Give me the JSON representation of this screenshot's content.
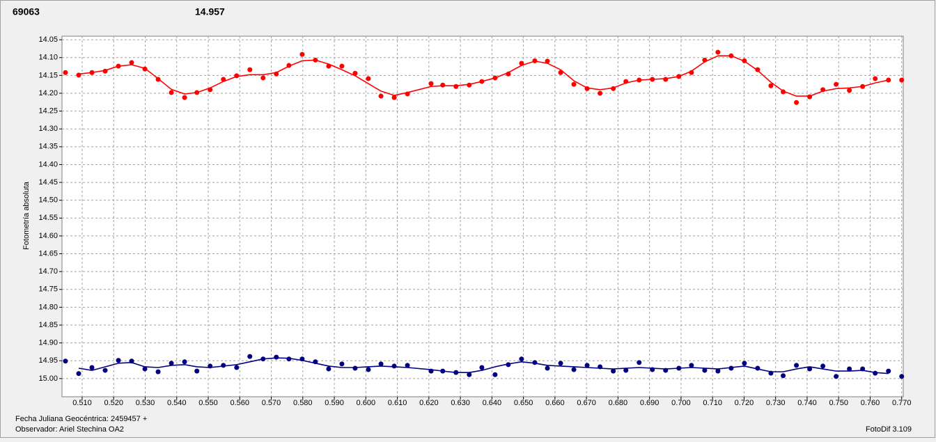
{
  "chart_data": {
    "type": "scatter",
    "header_values": [
      {
        "text": "69063",
        "color": "#ff0000"
      },
      {
        "text": "14.957",
        "color": "#000080"
      }
    ],
    "y_label": "Fotometría absoluta",
    "footer": [
      "Fecha Juliana Geocéntrica: 2459457 +",
      "Observador: Ariel Stechina OA2"
    ],
    "version": "FotoDif 3.109",
    "grid": true,
    "y_inverted": true,
    "xlim": [
      0.5036,
      0.7705
    ],
    "ylim": [
      14.04,
      15.051
    ],
    "xticks": [
      {
        "value": 0.51,
        "label": "0.510"
      },
      {
        "value": 0.52,
        "label": "0.520"
      },
      {
        "value": 0.53,
        "label": "0.530"
      },
      {
        "value": 0.54,
        "label": "0.540"
      },
      {
        "value": 0.55,
        "label": "0.550"
      },
      {
        "value": 0.56,
        "label": "0.560"
      },
      {
        "value": 0.57,
        "label": "0.570"
      },
      {
        "value": 0.58,
        "label": "0.580"
      },
      {
        "value": 0.59,
        "label": "0.590"
      },
      {
        "value": 0.6,
        "label": "0.600"
      },
      {
        "value": 0.61,
        "label": "0.610"
      },
      {
        "value": 0.62,
        "label": "0.620"
      },
      {
        "value": 0.63,
        "label": "0.630"
      },
      {
        "value": 0.64,
        "label": "0.640"
      },
      {
        "value": 0.65,
        "label": "0.650"
      },
      {
        "value": 0.66,
        "label": "0.660"
      },
      {
        "value": 0.67,
        "label": "0.670"
      },
      {
        "value": 0.68,
        "label": "0.680"
      },
      {
        "value": 0.69,
        "label": "0.690"
      },
      {
        "value": 0.7,
        "label": "0.700"
      },
      {
        "value": 0.71,
        "label": "0.710"
      },
      {
        "value": 0.72,
        "label": "0.720"
      },
      {
        "value": 0.73,
        "label": "0.730"
      },
      {
        "value": 0.74,
        "label": "0.740"
      },
      {
        "value": 0.75,
        "label": "0.750"
      },
      {
        "value": 0.76,
        "label": "0.760"
      },
      {
        "value": 0.77,
        "label": "0.770"
      }
    ],
    "yticks": [
      14.05,
      {
        "value": 14.1,
        "label": "14.10"
      },
      14.15,
      {
        "value": 14.2,
        "label": "14.20"
      },
      14.25,
      {
        "value": 14.3,
        "label": "14.30"
      },
      14.35,
      {
        "value": 14.4,
        "label": "14.40"
      },
      14.45,
      {
        "value": 14.5,
        "label": "14.50"
      },
      14.55,
      {
        "value": 14.6,
        "label": "14.60"
      },
      14.65,
      {
        "value": 14.7,
        "label": "14.70"
      },
      14.75,
      {
        "value": 14.8,
        "label": "14.80"
      },
      14.85,
      {
        "value": 14.9,
        "label": "14.90"
      },
      14.95,
      {
        "value": 15.0,
        "label": "15.00"
      }
    ],
    "x": [
      0.5047,
      0.5089,
      0.5131,
      0.5173,
      0.5215,
      0.5257,
      0.5299,
      0.5341,
      0.5383,
      0.5425,
      0.5464,
      0.5506,
      0.5548,
      0.559,
      0.5632,
      0.5674,
      0.5716,
      0.5756,
      0.5798,
      0.584,
      0.5882,
      0.5924,
      0.5966,
      0.6008,
      0.6048,
      0.609,
      0.6132,
      0.6207,
      0.6244,
      0.6286,
      0.6328,
      0.6368,
      0.641,
      0.6452,
      0.6494,
      0.6536,
      0.6576,
      0.6618,
      0.666,
      0.6702,
      0.6743,
      0.6785,
      0.6825,
      0.6867,
      0.6909,
      0.6951,
      0.6993,
      0.7033,
      0.7075,
      0.7117,
      0.7159,
      0.7201,
      0.7243,
      0.7285,
      0.7324,
      0.7366,
      0.7408,
      0.745,
      0.7492,
      0.7534,
      0.7576,
      0.7616,
      0.7658,
      0.77
    ],
    "series": [
      {
        "color": "#ff0000",
        "values": [
          14.142,
          14.149,
          14.142,
          14.138,
          14.124,
          14.114,
          14.132,
          14.161,
          14.198,
          14.212,
          14.198,
          14.19,
          14.161,
          14.151,
          14.134,
          14.157,
          14.146,
          14.122,
          14.091,
          14.107,
          14.124,
          14.124,
          14.144,
          14.159,
          14.208,
          14.212,
          14.202,
          14.173,
          14.177,
          14.181,
          14.177,
          14.167,
          14.157,
          14.146,
          14.116,
          14.109,
          14.11,
          14.142,
          14.175,
          14.187,
          14.2,
          14.187,
          14.167,
          14.163,
          14.161,
          14.161,
          14.153,
          14.142,
          14.107,
          14.085,
          14.095,
          14.109,
          14.134,
          14.179,
          14.196,
          14.226,
          14.21,
          14.19,
          14.175,
          14.192,
          14.181,
          14.159,
          14.163,
          14.163
        ],
        "fit": [
          null,
          14.146,
          14.142,
          14.136,
          14.124,
          14.12,
          14.13,
          14.159,
          14.189,
          14.202,
          14.198,
          14.185,
          14.167,
          14.153,
          14.148,
          14.148,
          14.142,
          14.124,
          14.109,
          14.107,
          14.118,
          14.134,
          14.151,
          14.173,
          14.194,
          14.206,
          14.198,
          14.181,
          14.179,
          14.179,
          14.175,
          14.167,
          14.157,
          14.142,
          14.122,
          14.11,
          14.116,
          14.134,
          14.165,
          14.185,
          14.19,
          14.185,
          14.171,
          14.163,
          14.161,
          14.159,
          14.153,
          14.138,
          14.112,
          14.095,
          14.095,
          14.11,
          14.136,
          14.169,
          14.194,
          14.208,
          14.208,
          14.194,
          14.187,
          14.185,
          14.181,
          14.171,
          14.163,
          null
        ]
      },
      {
        "color": "#000080",
        "values": [
          14.951,
          14.986,
          14.969,
          14.977,
          14.949,
          14.951,
          14.973,
          14.981,
          14.957,
          14.953,
          14.979,
          14.965,
          14.963,
          14.969,
          14.938,
          14.945,
          14.94,
          14.945,
          14.945,
          14.953,
          14.973,
          14.959,
          14.971,
          14.975,
          14.959,
          14.965,
          14.963,
          14.979,
          14.979,
          14.983,
          14.989,
          14.969,
          14.989,
          14.961,
          14.945,
          14.955,
          14.971,
          14.957,
          14.975,
          14.963,
          14.967,
          14.979,
          14.977,
          14.955,
          14.975,
          14.977,
          14.971,
          14.963,
          14.977,
          14.979,
          14.971,
          14.957,
          14.971,
          14.985,
          14.992,
          14.963,
          14.973,
          14.965,
          14.994,
          14.973,
          14.973,
          14.985,
          14.979,
          14.994
        ],
        "fit": [
          null,
          14.971,
          14.977,
          14.967,
          14.957,
          14.955,
          14.967,
          14.969,
          14.963,
          14.961,
          14.967,
          14.969,
          14.965,
          14.961,
          14.953,
          14.945,
          14.942,
          14.943,
          14.949,
          14.957,
          14.965,
          14.969,
          14.969,
          14.967,
          14.965,
          14.967,
          14.969,
          14.975,
          14.979,
          14.983,
          14.983,
          14.977,
          14.967,
          14.959,
          14.953,
          14.957,
          14.963,
          14.965,
          14.967,
          14.969,
          14.971,
          14.973,
          14.971,
          14.969,
          14.971,
          14.973,
          14.971,
          14.969,
          14.971,
          14.973,
          14.969,
          14.965,
          14.973,
          14.981,
          14.981,
          14.973,
          14.967,
          14.973,
          14.979,
          14.979,
          14.977,
          14.983,
          14.986,
          null
        ]
      }
    ]
  }
}
